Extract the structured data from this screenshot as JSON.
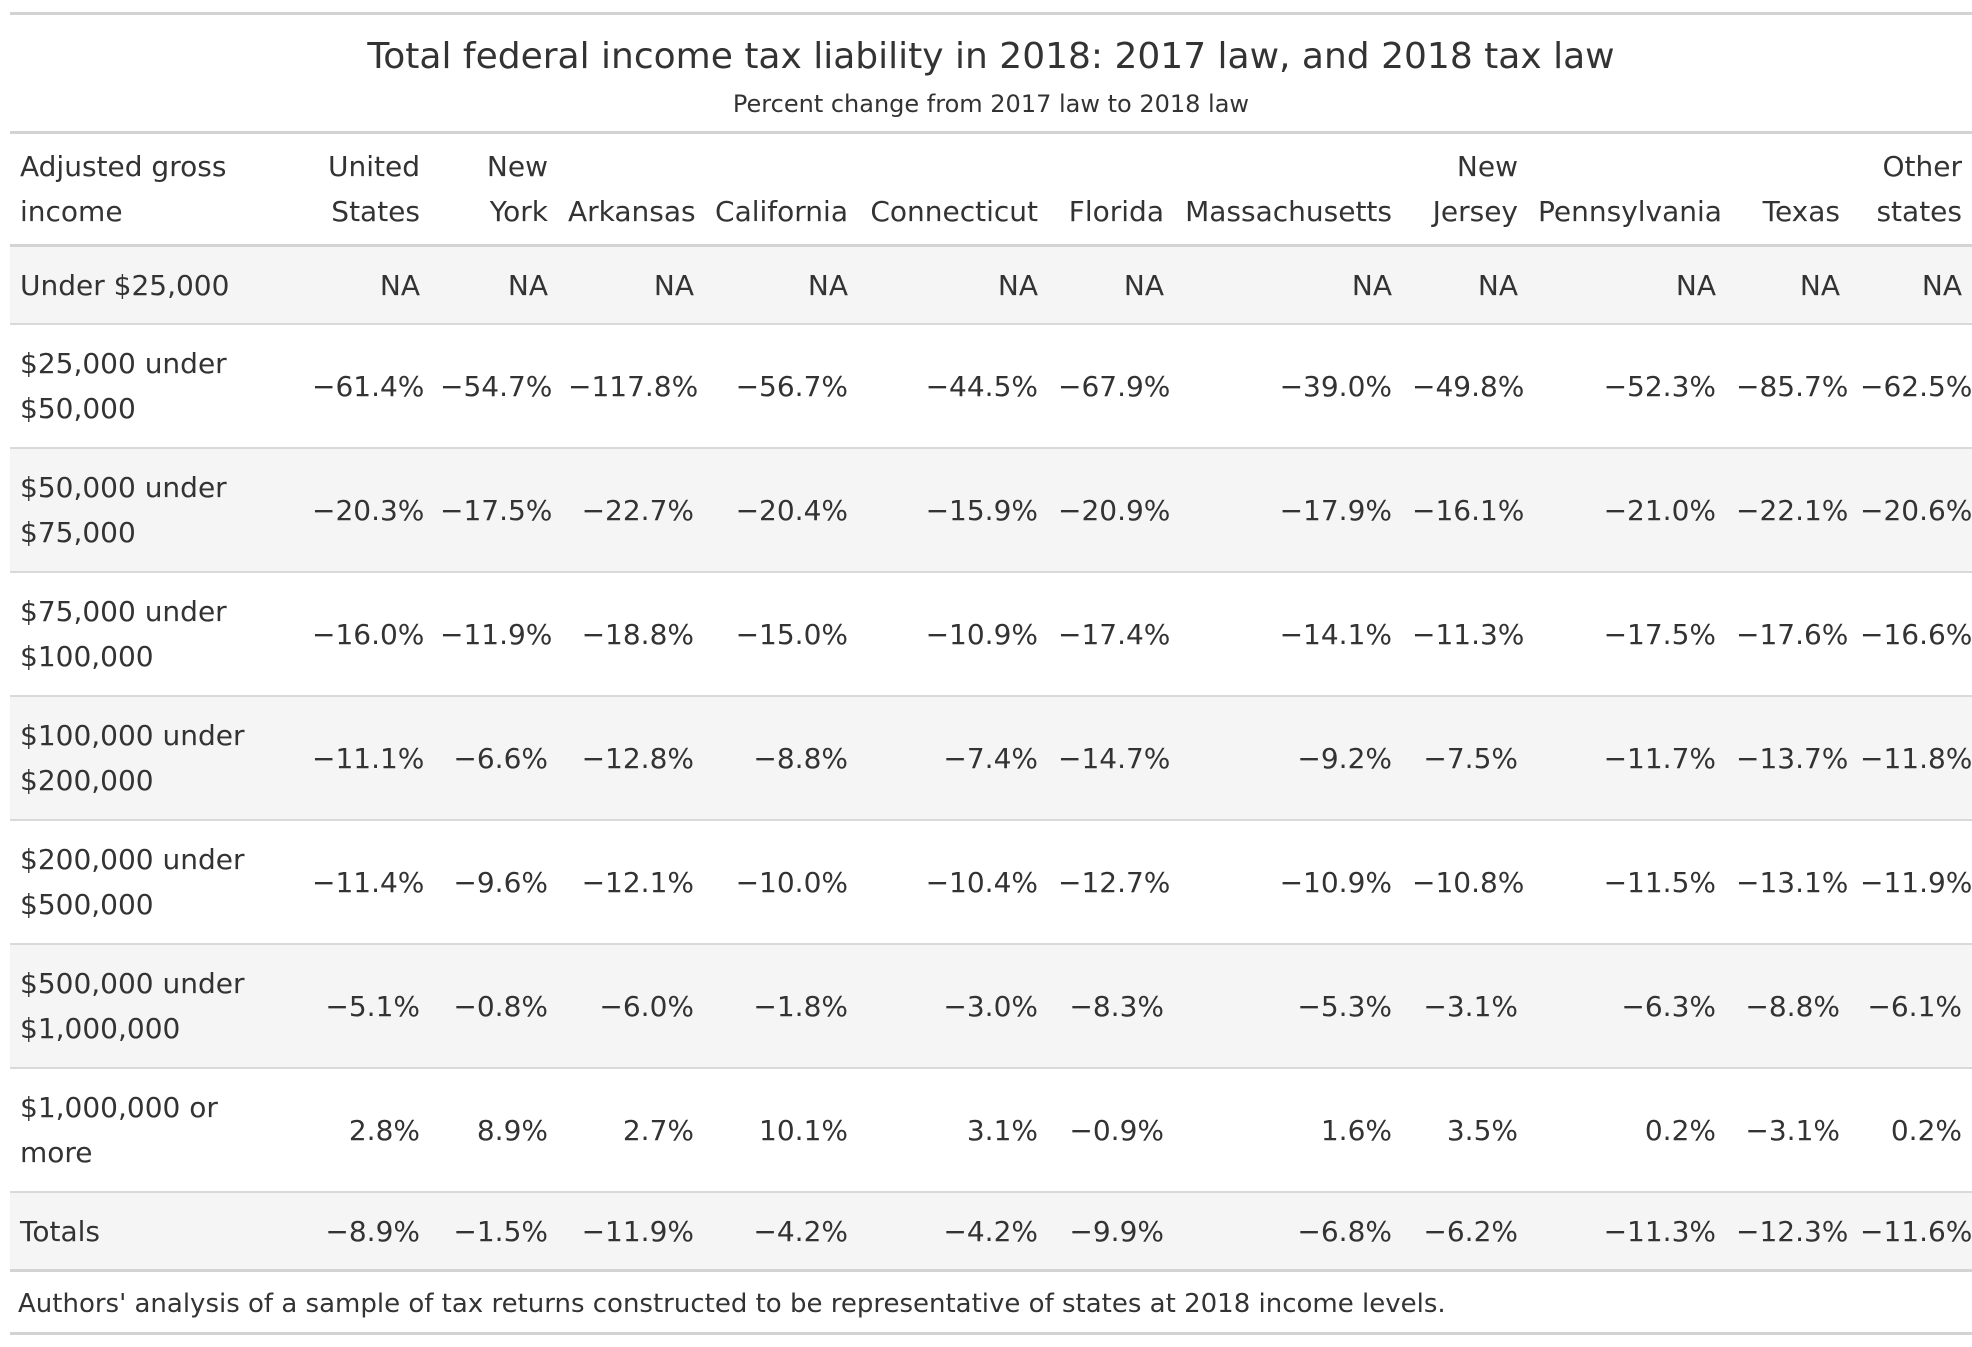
{
  "header": {
    "title": "Total federal income tax liability in 2018: 2017 law, and 2018 tax law",
    "subtitle": "Percent change from 2017 law to 2018 law"
  },
  "table": {
    "columns": [
      [
        "Adjusted gross",
        "income"
      ],
      [
        "United",
        "States"
      ],
      [
        "New",
        "York"
      ],
      [
        "",
        "Arkansas"
      ],
      [
        "",
        "California"
      ],
      [
        "",
        "Connecticut"
      ],
      [
        "",
        "Florida"
      ],
      [
        "",
        "Massachusetts"
      ],
      [
        "New",
        "Jersey"
      ],
      [
        "",
        "Pennsylvania"
      ],
      [
        "",
        "Texas"
      ],
      [
        "Other",
        "states"
      ]
    ],
    "rows": [
      {
        "label": [
          "Under $25,000"
        ],
        "values": [
          "NA",
          "NA",
          "NA",
          "NA",
          "NA",
          "NA",
          "NA",
          "NA",
          "NA",
          "NA",
          "NA"
        ]
      },
      {
        "label": [
          "$25,000 under",
          "$50,000"
        ],
        "values": [
          "−61.4%",
          "−54.7%",
          "−117.8%",
          "−56.7%",
          "−44.5%",
          "−67.9%",
          "−39.0%",
          "−49.8%",
          "−52.3%",
          "−85.7%",
          "−62.5%"
        ]
      },
      {
        "label": [
          "$50,000 under",
          "$75,000"
        ],
        "values": [
          "−20.3%",
          "−17.5%",
          "−22.7%",
          "−20.4%",
          "−15.9%",
          "−20.9%",
          "−17.9%",
          "−16.1%",
          "−21.0%",
          "−22.1%",
          "−20.6%"
        ]
      },
      {
        "label": [
          "$75,000 under",
          "$100,000"
        ],
        "values": [
          "−16.0%",
          "−11.9%",
          "−18.8%",
          "−15.0%",
          "−10.9%",
          "−17.4%",
          "−14.1%",
          "−11.3%",
          "−17.5%",
          "−17.6%",
          "−16.6%"
        ]
      },
      {
        "label": [
          "$100,000 under",
          "$200,000"
        ],
        "values": [
          "−11.1%",
          "−6.6%",
          "−12.8%",
          "−8.8%",
          "−7.4%",
          "−14.7%",
          "−9.2%",
          "−7.5%",
          "−11.7%",
          "−13.7%",
          "−11.8%"
        ]
      },
      {
        "label": [
          "$200,000 under",
          "$500,000"
        ],
        "values": [
          "−11.4%",
          "−9.6%",
          "−12.1%",
          "−10.0%",
          "−10.4%",
          "−12.7%",
          "−10.9%",
          "−10.8%",
          "−11.5%",
          "−13.1%",
          "−11.9%"
        ]
      },
      {
        "label": [
          "$500,000 under",
          "$1,000,000"
        ],
        "values": [
          "−5.1%",
          "−0.8%",
          "−6.0%",
          "−1.8%",
          "−3.0%",
          "−8.3%",
          "−5.3%",
          "−3.1%",
          "−6.3%",
          "−8.8%",
          "−6.1%"
        ]
      },
      {
        "label": [
          "$1,000,000 or",
          "more"
        ],
        "values": [
          "2.8%",
          "8.9%",
          "2.7%",
          "10.1%",
          "3.1%",
          "−0.9%",
          "1.6%",
          "3.5%",
          "0.2%",
          "−3.1%",
          "0.2%"
        ]
      },
      {
        "label": [
          "Totals"
        ],
        "values": [
          "−8.9%",
          "−1.5%",
          "−11.9%",
          "−4.2%",
          "−4.2%",
          "−9.9%",
          "−6.8%",
          "−6.2%",
          "−11.3%",
          "−12.3%",
          "−11.6%"
        ]
      }
    ]
  },
  "footer": {
    "source": "Authors' analysis of a sample of tax returns constructed to be representative of states at 2018 income levels."
  }
}
